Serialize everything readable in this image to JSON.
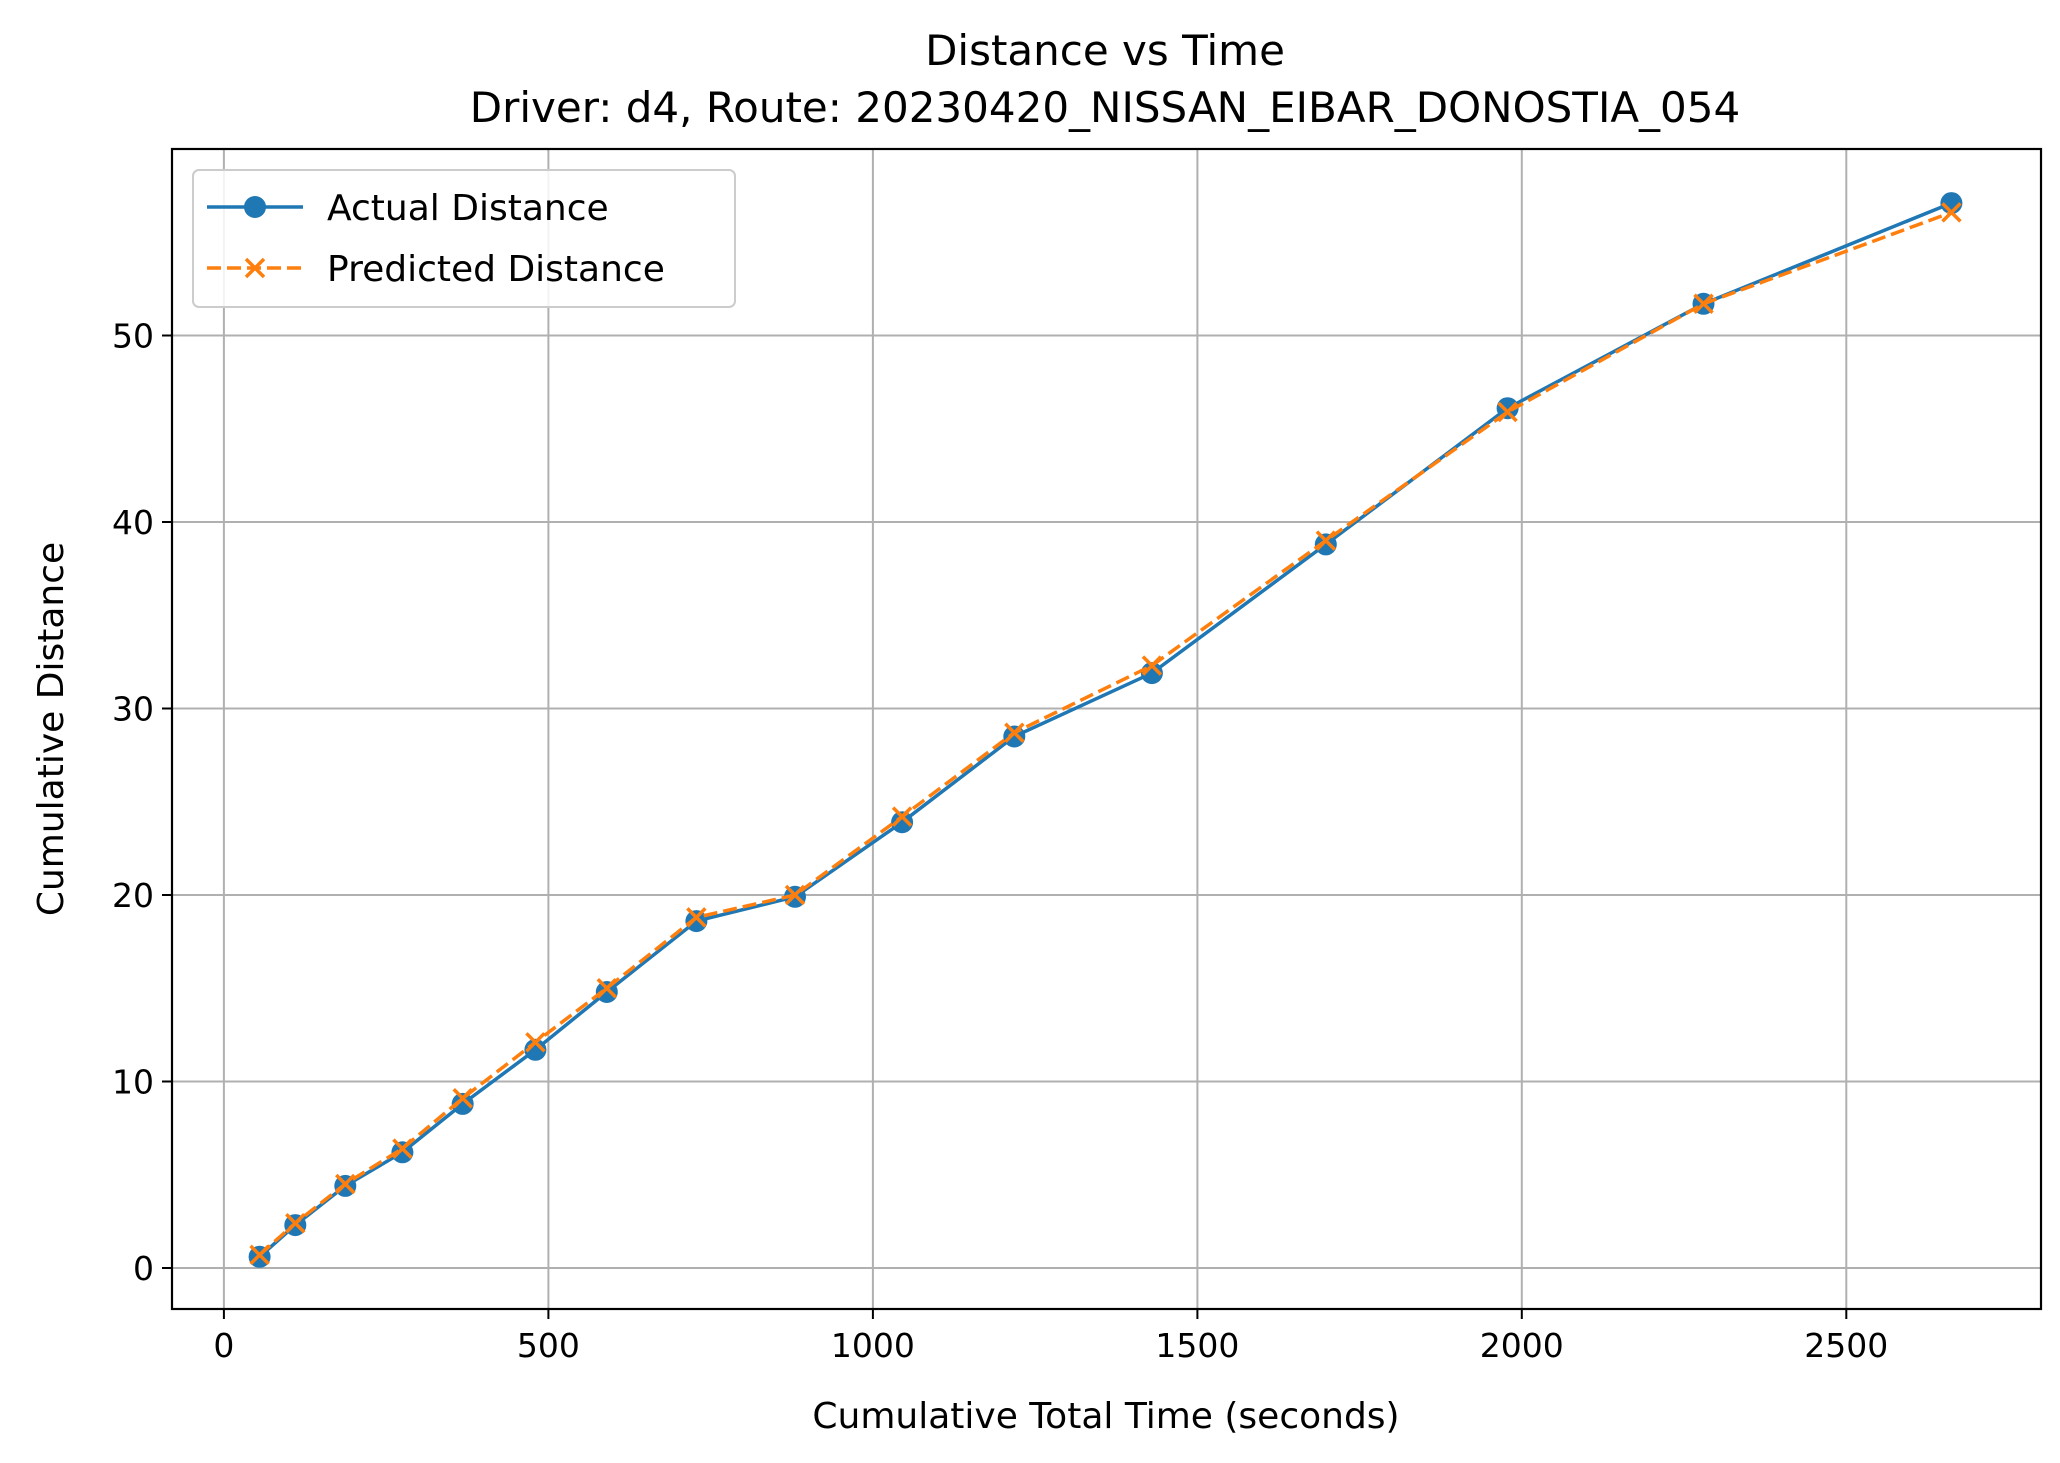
{
  "chart_data": {
    "type": "line",
    "title": "Distance vs Time",
    "subtitle": "Driver: d4, Route: 20230420_NISSAN_EIBAR_DONOSTIA_054",
    "xlabel": "Cumulative Total Time (seconds)",
    "ylabel": "Cumulative Distance",
    "xlim": [
      -80,
      2800
    ],
    "ylim": [
      -2.2,
      60
    ],
    "xticks": [
      0,
      500,
      1000,
      1500,
      2000,
      2500
    ],
    "yticks": [
      0,
      10,
      20,
      30,
      40,
      50
    ],
    "grid": true,
    "legend_position": "upper-left",
    "x": [
      55,
      110,
      187,
      275,
      368,
      480,
      590,
      728,
      880,
      1045,
      1218,
      1430,
      1698,
      1978,
      2280,
      2662
    ],
    "series": [
      {
        "name": "Actual Distance",
        "color": "#1f77b4",
        "linestyle": "solid",
        "marker": "circle",
        "values": [
          0.6,
          2.3,
          4.4,
          6.2,
          8.8,
          11.7,
          14.8,
          18.6,
          19.9,
          23.9,
          28.5,
          31.9,
          38.8,
          46.1,
          51.7,
          57.1
        ]
      },
      {
        "name": "Predicted Distance",
        "color": "#ff7f0e",
        "linestyle": "dashed",
        "marker": "x",
        "values": [
          0.7,
          2.4,
          4.5,
          6.4,
          9.1,
          12.1,
          15.0,
          18.8,
          20.0,
          24.2,
          28.7,
          32.3,
          39.0,
          45.9,
          51.7,
          56.6
        ]
      }
    ]
  }
}
